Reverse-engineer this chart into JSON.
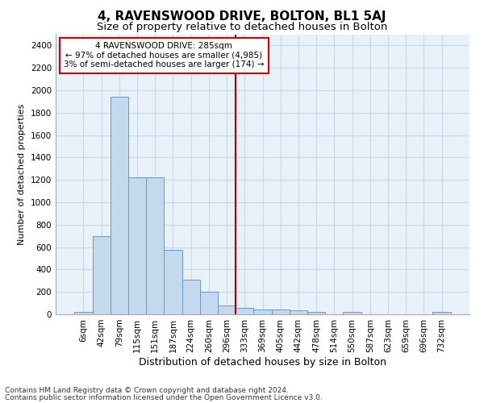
{
  "title": "4, RAVENSWOOD DRIVE, BOLTON, BL1 5AJ",
  "subtitle": "Size of property relative to detached houses in Bolton",
  "xlabel": "Distribution of detached houses by size in Bolton",
  "ylabel": "Number of detached properties",
  "footer_lines": [
    "Contains HM Land Registry data © Crown copyright and database right 2024.",
    "Contains public sector information licensed under the Open Government Licence v3.0."
  ],
  "bin_labels": [
    "6sqm",
    "42sqm",
    "79sqm",
    "115sqm",
    "151sqm",
    "187sqm",
    "224sqm",
    "260sqm",
    "296sqm",
    "333sqm",
    "369sqm",
    "405sqm",
    "442sqm",
    "478sqm",
    "514sqm",
    "550sqm",
    "587sqm",
    "623sqm",
    "659sqm",
    "696sqm",
    "732sqm"
  ],
  "bar_values": [
    20,
    700,
    1940,
    1220,
    1220,
    575,
    310,
    205,
    80,
    55,
    40,
    40,
    35,
    25,
    0,
    25,
    0,
    0,
    0,
    0,
    20
  ],
  "bar_color": "#c5d9ee",
  "bar_edgecolor": "#6699cc",
  "grid_color": "#c8d8e8",
  "background_color": "#e8f0f8",
  "vline_x": 8.5,
  "vline_color": "#aa0000",
  "annotation_text": "4 RAVENSWOOD DRIVE: 285sqm\n← 97% of detached houses are smaller (4,985)\n3% of semi-detached houses are larger (174) →",
  "annotation_box_color": "#cc0000",
  "ylim": [
    0,
    2500
  ],
  "yticks": [
    0,
    200,
    400,
    600,
    800,
    1000,
    1200,
    1400,
    1600,
    1800,
    2000,
    2200,
    2400
  ],
  "title_fontsize": 11,
  "subtitle_fontsize": 9.5,
  "xlabel_fontsize": 9,
  "ylabel_fontsize": 8,
  "tick_fontsize": 7.5,
  "annotation_fontsize": 7.5,
  "footer_fontsize": 6.5
}
